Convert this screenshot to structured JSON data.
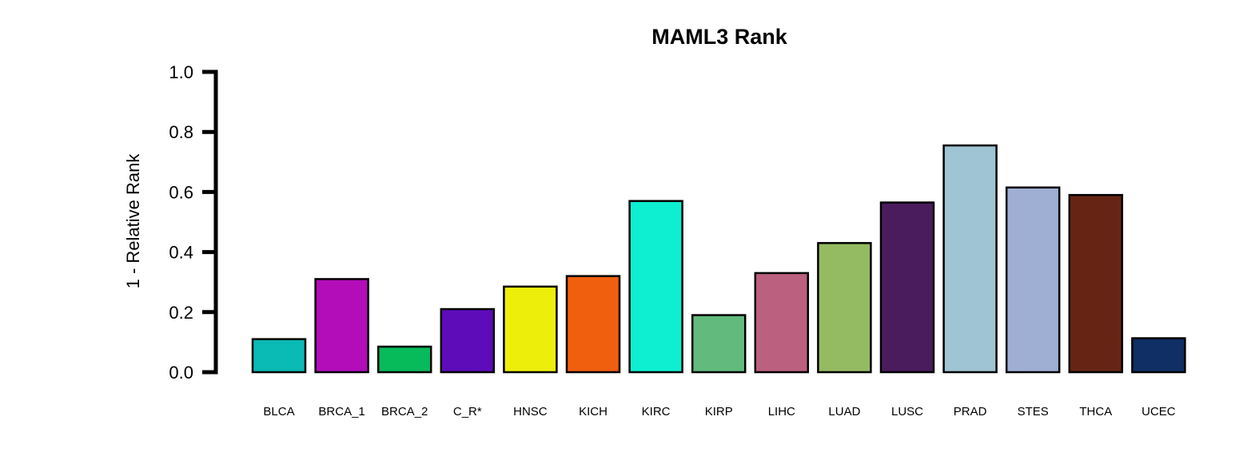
{
  "chart_data": {
    "type": "bar",
    "title": "MAML3 Rank",
    "xlabel": "",
    "ylabel": "1 - Relative Rank",
    "ylim": [
      0,
      1.0
    ],
    "yticks": [
      "0.0",
      "0.2",
      "0.4",
      "0.6",
      "0.8",
      "1.0"
    ],
    "grid": false,
    "categories": [
      "BLCA",
      "BRCA_1",
      "BRCA_2",
      "C_R*",
      "HNSC",
      "KICH",
      "KIRC",
      "KIRP",
      "LIHC",
      "LUAD",
      "LUSC",
      "PRAD",
      "STES",
      "THCA",
      "UCEC"
    ],
    "values": [
      0.11,
      0.31,
      0.085,
      0.21,
      0.285,
      0.32,
      0.57,
      0.19,
      0.33,
      0.43,
      0.565,
      0.755,
      0.615,
      0.59,
      0.113
    ],
    "colors": [
      "#0ABAB5",
      "#B30CB9",
      "#07BA5A",
      "#5E0BB9",
      "#EEEE0B",
      "#F05F0E",
      "#0DEFD0",
      "#62BB7D",
      "#BC6080",
      "#95BB62",
      "#4A1C5E",
      "#9FC4D3",
      "#9FAFD3",
      "#662514",
      "#0F2F65"
    ]
  }
}
